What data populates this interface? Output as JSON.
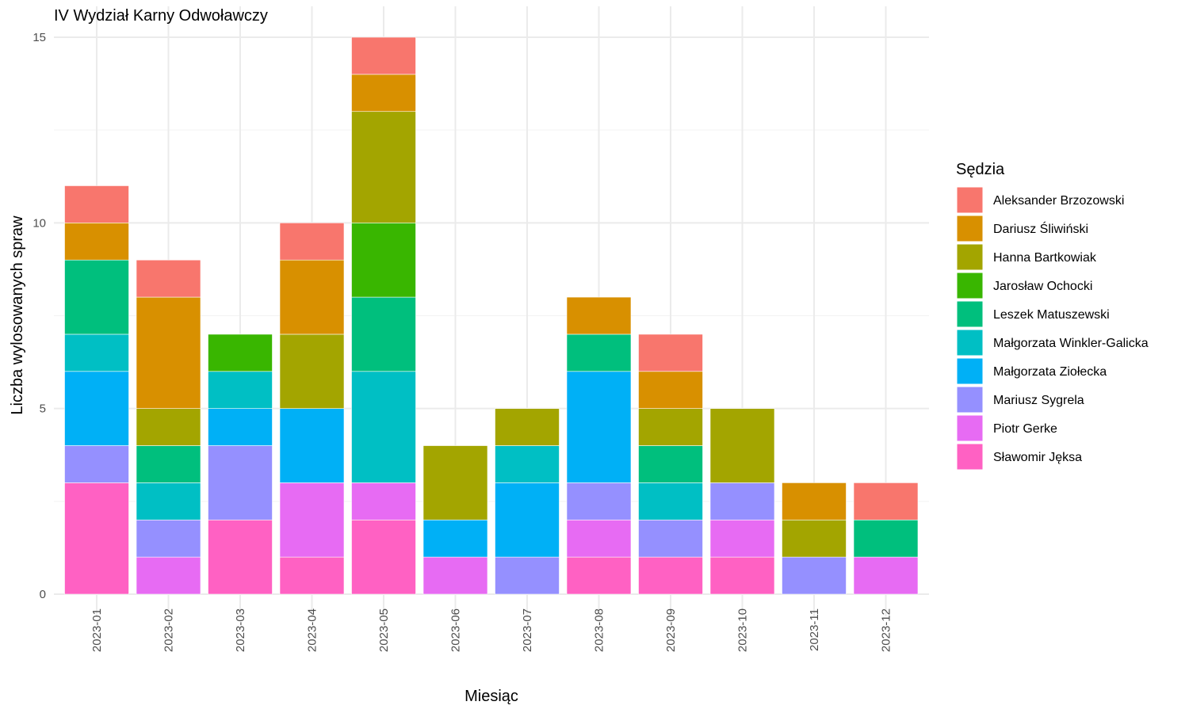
{
  "chart_data": {
    "type": "bar",
    "stacked": true,
    "title": "IV Wydział Karny Odwoławczy",
    "xlabel": "Miesiąc",
    "ylabel": "Liczba wylosowanych spraw",
    "ylim": [
      0,
      15
    ],
    "y_ticks": [
      0,
      5,
      10,
      15
    ],
    "grid": true,
    "legend_title": "Sędzia",
    "legend_position": "right",
    "categories": [
      "2023-01",
      "2023-02",
      "2023-03",
      "2023-04",
      "2023-05",
      "2023-06",
      "2023-07",
      "2023-08",
      "2023-09",
      "2023-10",
      "2023-11",
      "2023-12"
    ],
    "series": [
      {
        "name": "Sławomir Jęksa",
        "color": "#FF61C3",
        "values": [
          3,
          0,
          2,
          1,
          2,
          0,
          0,
          1,
          1,
          1,
          0,
          0
        ]
      },
      {
        "name": "Piotr Gerke",
        "color": "#E76BF3",
        "values": [
          0,
          1,
          0,
          2,
          1,
          1,
          0,
          1,
          0,
          1,
          0,
          1
        ]
      },
      {
        "name": "Mariusz Sygrela",
        "color": "#9590FF",
        "values": [
          1,
          1,
          2,
          0,
          0,
          0,
          1,
          1,
          1,
          1,
          1,
          0
        ]
      },
      {
        "name": "Małgorzata Ziołecka",
        "color": "#00B0F6",
        "values": [
          2,
          0,
          1,
          2,
          0,
          1,
          2,
          3,
          0,
          0,
          0,
          0
        ]
      },
      {
        "name": "Małgorzata Winkler-Galicka",
        "color": "#00BFC4",
        "values": [
          1,
          1,
          1,
          0,
          3,
          0,
          1,
          0,
          1,
          0,
          0,
          0
        ]
      },
      {
        "name": "Leszek Matuszewski",
        "color": "#00BF7D",
        "values": [
          2,
          1,
          0,
          0,
          2,
          0,
          0,
          1,
          1,
          0,
          0,
          1
        ]
      },
      {
        "name": "Jarosław Ochocki",
        "color": "#39B600",
        "values": [
          0,
          0,
          1,
          0,
          2,
          0,
          0,
          0,
          0,
          0,
          0,
          0
        ]
      },
      {
        "name": "Hanna Bartkowiak",
        "color": "#A3A500",
        "values": [
          0,
          1,
          0,
          2,
          3,
          2,
          1,
          0,
          1,
          2,
          1,
          0
        ]
      },
      {
        "name": "Dariusz Śliwiński",
        "color": "#D89000",
        "values": [
          1,
          3,
          0,
          2,
          1,
          0,
          0,
          1,
          1,
          0,
          1,
          0
        ]
      },
      {
        "name": "Aleksander Brzozowski",
        "color": "#F8766D",
        "values": [
          1,
          1,
          0,
          1,
          1,
          0,
          0,
          0,
          1,
          0,
          0,
          1
        ]
      }
    ],
    "legend_order": [
      "Aleksander Brzozowski",
      "Dariusz Śliwiński",
      "Hanna Bartkowiak",
      "Jarosław Ochocki",
      "Leszek Matuszewski",
      "Małgorzata Winkler-Galicka",
      "Małgorzata Ziołecka",
      "Mariusz Sygrela",
      "Piotr Gerke",
      "Sławomir Jęksa"
    ]
  }
}
